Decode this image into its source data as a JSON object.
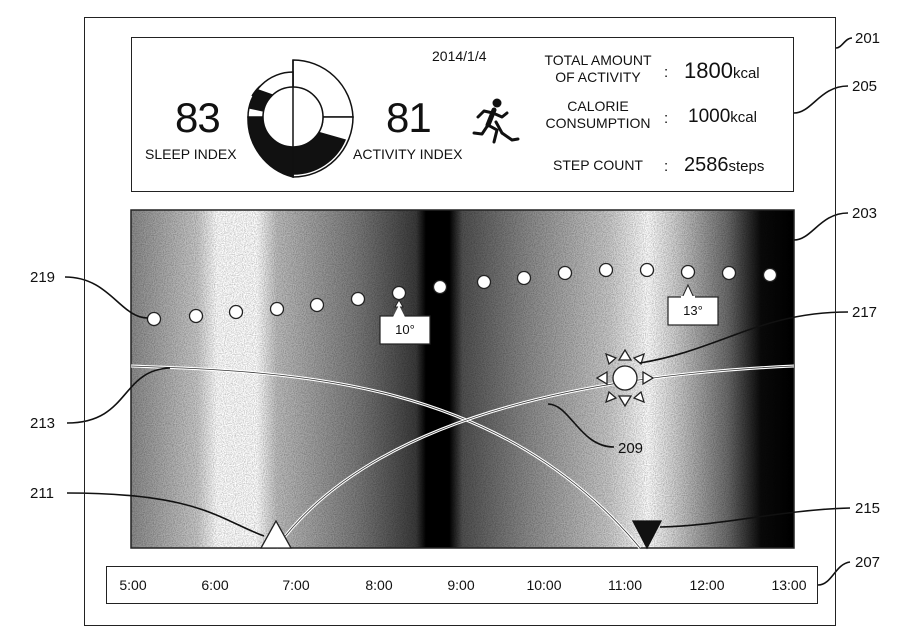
{
  "summary": {
    "date": "2014/1/4",
    "sleep_index_value": "83",
    "sleep_index_label": "SLEEP INDEX",
    "activity_index_value": "81",
    "activity_index_label": "ACTIVITY INDEX",
    "stats": [
      {
        "label_line1": "TOTAL AMOUNT",
        "label_line2": "OF ACTIVITY",
        "colon": ":",
        "value": "1800",
        "unit": "kcal"
      },
      {
        "label_line1": "CALORIE",
        "label_line2": "CONSUMPTION",
        "colon": ":",
        "value": "1000",
        "unit": "kcal"
      },
      {
        "label_line1": "STEP COUNT",
        "label_line2": "",
        "colon": ":",
        "value": "2586",
        "unit": "steps"
      }
    ]
  },
  "timeline": {
    "times": [
      "5:00",
      "6:00",
      "7:00",
      "8:00",
      "9:00",
      "10:00",
      "11:00",
      "12:00",
      "13:00"
    ]
  },
  "temperatures": {
    "left_label": "10°",
    "right_label": "13°"
  },
  "reference_numerals": {
    "r201": "201",
    "r203": "203",
    "r205": "205",
    "r207": "207",
    "r209": "209",
    "r211": "211",
    "r213": "213",
    "r215": "215",
    "r217": "217",
    "r219": "219"
  },
  "icons": [
    "donut-chart-icon",
    "running-person-icon",
    "sun-icon",
    "sunrise-triangle-icon",
    "sunset-triangle-icon"
  ]
}
